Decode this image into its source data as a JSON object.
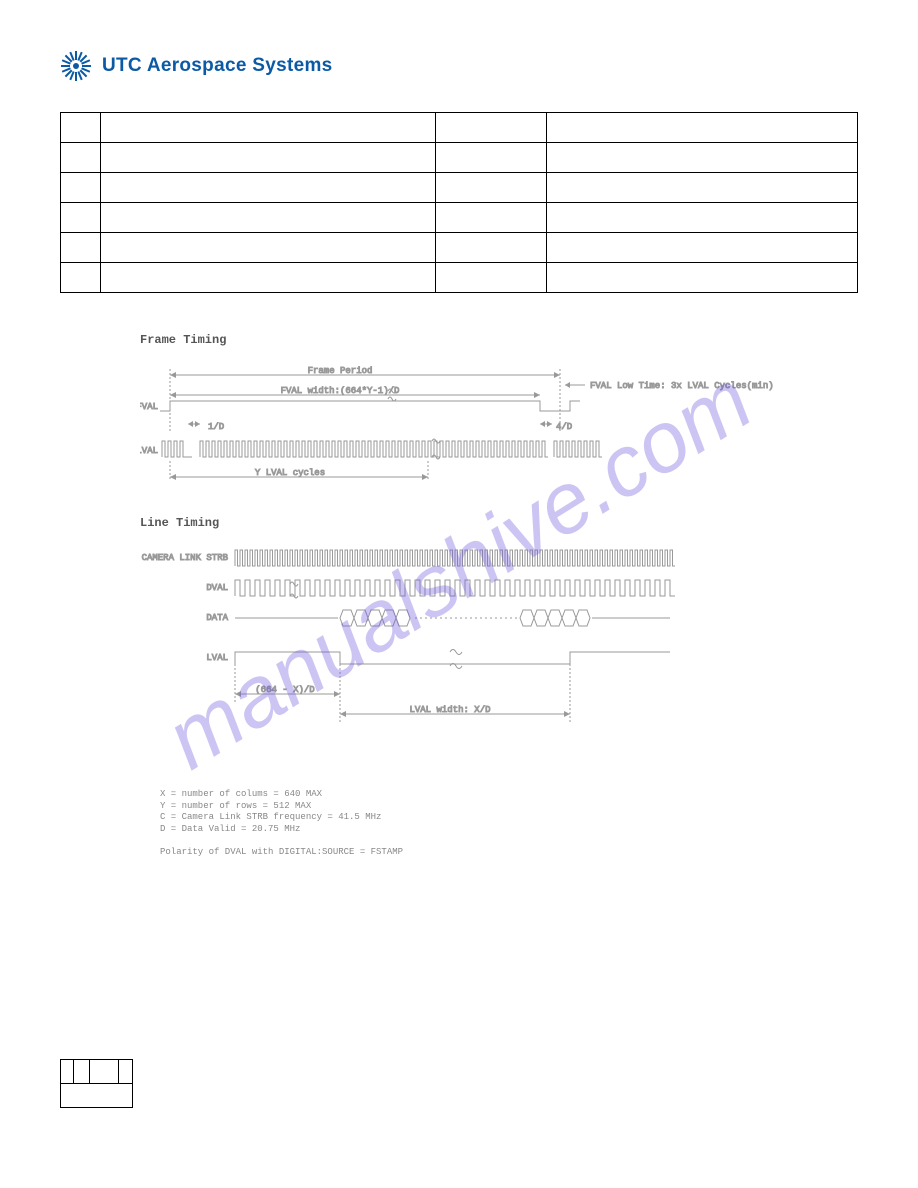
{
  "brand": {
    "name": "UTC Aerospace Systems"
  },
  "watermark": "manualshive.com",
  "spec_table": {
    "rows": [
      [
        "",
        "",
        "",
        ""
      ],
      [
        "",
        "",
        "",
        ""
      ],
      [
        "",
        "",
        "",
        ""
      ],
      [
        "",
        "",
        "",
        ""
      ],
      [
        "",
        "",
        "",
        ""
      ],
      [
        "",
        "",
        "",
        ""
      ]
    ]
  },
  "frame_timing": {
    "title": "Frame Timing",
    "fval_label": "FVAL",
    "lval_label": "LVAL",
    "frame_period_label": "Frame Period",
    "fval_width_label": "FVAL width:(664*Y-1)/D",
    "fval_low_label": "FVAL Low Time: 3x LVAL Cycles(min)",
    "dim_1d": "1/D",
    "dim_4d": "4/D",
    "y_lval_label": "Y LVAL cycles",
    "colors": {
      "stroke": "#999999",
      "text": "#888888"
    }
  },
  "line_timing": {
    "title": "Line Timing",
    "strb_label": "CAMERA LINK STRB",
    "dval_label": "DVAL",
    "data_label": "DATA",
    "lval_label": "LVAL",
    "dim_664x": "(664 - X)/D",
    "lval_width_label": "LVAL width:  X/D",
    "colors": {
      "stroke": "#999999",
      "text": "#888888"
    }
  },
  "notes": {
    "line1": "X = number of colums = 640 MAX",
    "line2": "Y = number of rows = 512 MAX",
    "line3": "C = Camera Link STRB frequency = 41.5 MHz",
    "line4": "D = Data Valid = 20.75 MHz",
    "line5": "Polarity of DVAL with DIGITAL:SOURCE = FSTAMP"
  },
  "footer_table": {
    "row0": [
      "",
      "",
      "",
      ""
    ],
    "row1": ""
  }
}
